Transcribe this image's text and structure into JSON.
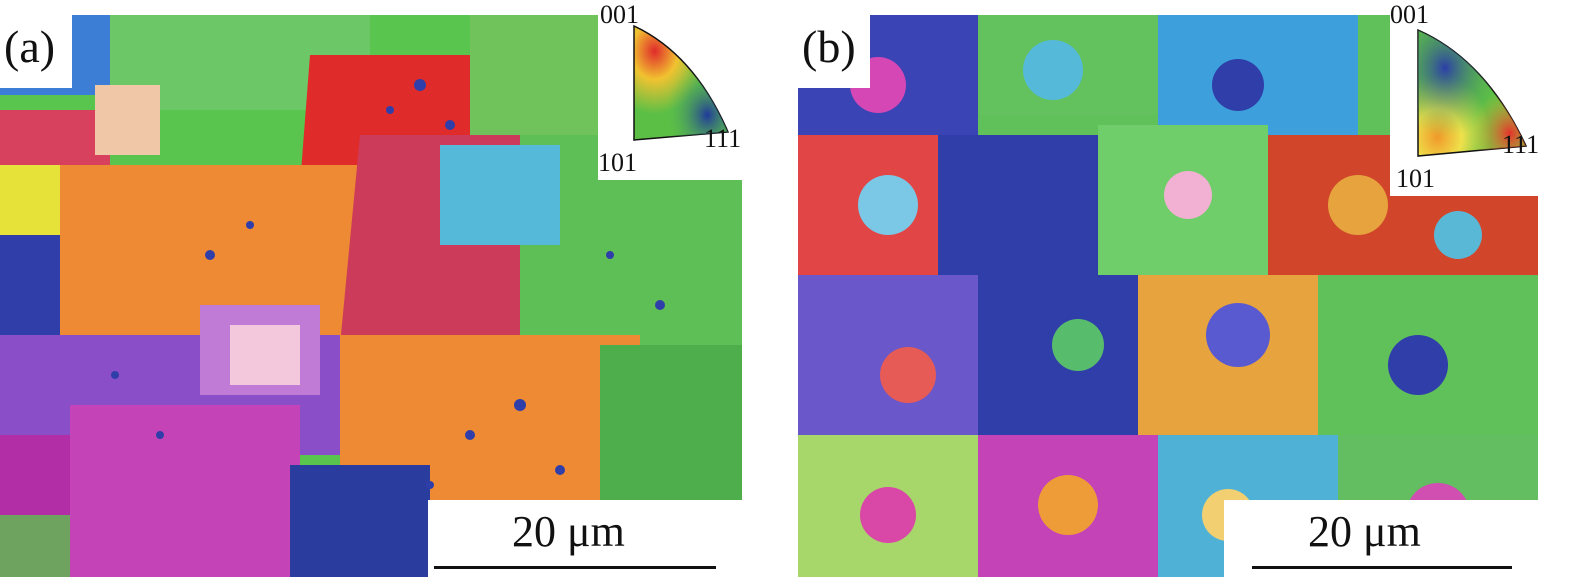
{
  "panels": [
    {
      "label": "(a)",
      "scale": "20 μm"
    },
    {
      "label": "(b)",
      "scale": "20 μm"
    }
  ],
  "ipf_key": {
    "top": "001",
    "bottom_left": "101",
    "right": "111"
  },
  "colors": {
    "red": "#e02b2b",
    "orange": "#ee8a34",
    "green": "#59c44e",
    "blue": "#2f3ea8",
    "purple": "#8a4fc8",
    "magenta": "#c444b8",
    "cyan": "#55b9d9"
  }
}
